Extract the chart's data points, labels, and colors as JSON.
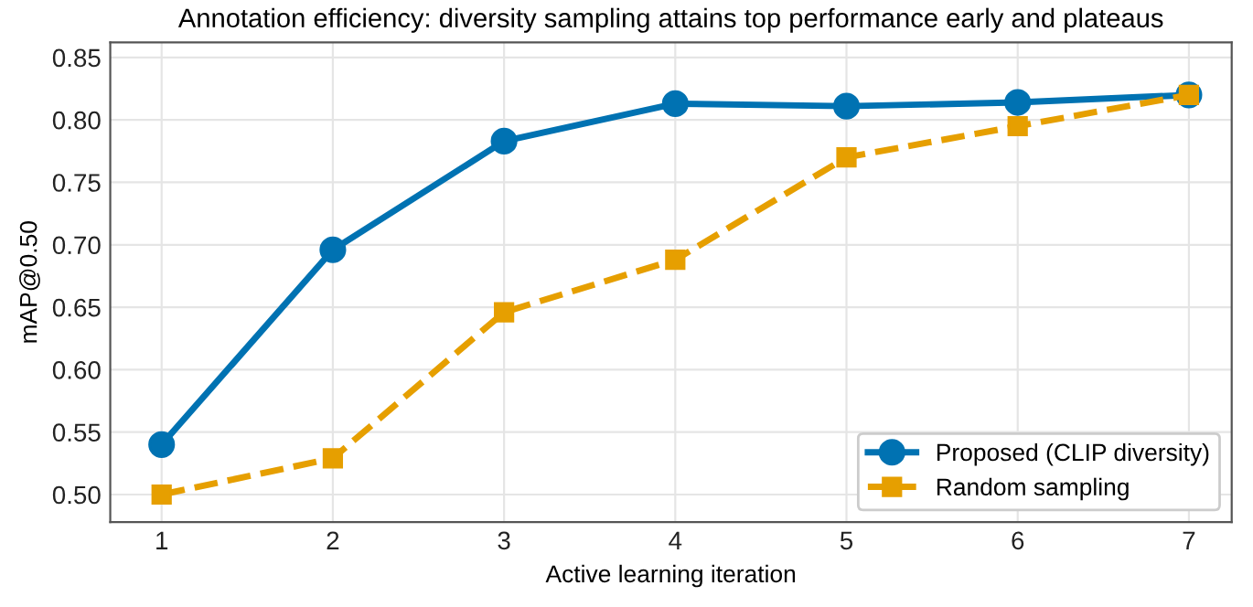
{
  "chart_data": {
    "type": "line",
    "title": "Annotation efficiency: diversity sampling attains top performance early and plateaus",
    "xlabel": "Active learning iteration",
    "ylabel": "mAP@0.50",
    "x": [
      1,
      2,
      3,
      4,
      5,
      6,
      7
    ],
    "series": [
      {
        "name": "Proposed (CLIP diversity)",
        "color": "#0072b2",
        "marker": "circle",
        "line_style": "solid",
        "values": [
          0.54,
          0.696,
          0.783,
          0.813,
          0.811,
          0.814,
          0.82
        ]
      },
      {
        "name": "Random sampling",
        "color": "#e69f00",
        "marker": "square",
        "line_style": "dashed",
        "values": [
          0.5,
          0.529,
          0.646,
          0.688,
          0.77,
          0.795,
          0.82
        ]
      }
    ],
    "xlim": [
      0.7,
      7.25
    ],
    "xticks": [
      1,
      2,
      3,
      4,
      5,
      6,
      7
    ],
    "ylim": [
      0.478,
      0.862
    ],
    "yticks": [
      {
        "value": 0.5,
        "label": "0.50"
      },
      0.55,
      {
        "value": 0.6,
        "label": "0.60"
      },
      0.65,
      {
        "value": 0.7,
        "label": "0.70"
      },
      0.75,
      {
        "value": 0.8,
        "label": "0.80"
      },
      0.85
    ],
    "grid": true,
    "legend": "lower right"
  }
}
